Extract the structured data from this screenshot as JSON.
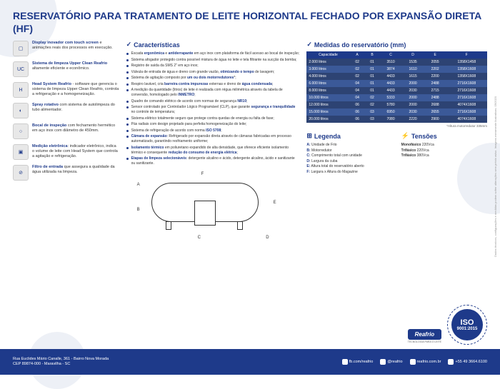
{
  "title": "RESERVATÓRIO PARA TRATAMENTO DE LEITE HORIZONTAL FECHADO POR EXPANSÃO DIRETA (HF)",
  "leftItems": [
    {
      "icon": "▢",
      "bold": "Display inovador com touch screen",
      "rest": " e animações reais dos processos em execução."
    },
    {
      "icon": "UC",
      "bold": "Sistema de limpeza Upper Clean Reafrio",
      "rest": " altamente eficiente e econômico."
    },
    {
      "icon": "H",
      "bold": "Head System Reafrio",
      "rest": " - software que gerencia o sistema de limpeza Upper Clean Reafrio, controla a refrigeração e a homogeneização."
    },
    {
      "icon": "◐",
      "bold": "Spray rotativo",
      "rest": " com sistema de autolimpeza do tubo alimentador."
    },
    {
      "icon": "○",
      "bold": "Bocal de inspeção",
      "rest": " com fechamento hermético em aço inox com diâmetro de 450mm."
    },
    {
      "icon": "▣",
      "bold": "Medição eletrônica",
      "rest": ": indicador eletrônico, indica o volume de leite com Head System que controla a agitação e refrigeração."
    },
    {
      "icon": "⊘",
      "bold": "Filtro de entrada",
      "rest": " que assegura a qualidade da água utilizada na limpeza."
    }
  ],
  "charTitle": "Características",
  "bullets": [
    "Escada <b>ergonômica</b> e <b>antiderrapante</b> em aço inox com plataforma de fácil acesso ao bocal de inspeção;",
    "Sistema afogador protegido contra possível mistura de água no leite e tela filtrante na sucção da bomba;",
    "Registro de saída da SMS 2\" em aço inox;",
    "Válvula de entrada de água e dreno com grande vazão, <b>otimizando o tempo</b> de lavagem;",
    "Sistema de agitação composto por <b>um ou dois motorredutores</b>*;",
    "Respiro lavável, cria <b>barreira contra impurezas</b> externas e dreno de <b>água condensada</b>;",
    "A medição da quantidade (litros) de leite é realizada com régua milimétrica através da tabela de conversão, homologado pelo <b>INMETRO</b>;",
    "Quadro de comando elétrico de acordo com normas de segurança <b>NR10</b>;",
    "Sensor controlado por Controlador Lógico Programável (CLP), que garante <b>segurança e tranquilidade</b> no controle de temperatura;",
    "Sistema elétrico totalmente seguro que protege contra quedas de energia ou falta de fase;",
    "Pás radiais com design projetado para perfeita homogeneização do leite;",
    "Sistema de refrigeração de acordo com norma <b>ISO 5708</b>;",
    "<b>Câmara de expansão</b>: Refrigerado por expansão direta através de câmaras fabricadas em processo automatizado, garantindo resfriamento uniforme;",
    "<b>Isolamento térmico</b> em poliuretano expandido de alta densidade, que oferece eficiente isolamento térmico e consequente <b>redução do consumo de energia elétrica</b>;",
    "<b>Etapas de limpeza selecionáveis</b>: detergente alcalino e ácido, detergente alcalino, ácido e sanitizante ou sanitizante."
  ],
  "tableTitle": "Medidas do reservatório (mm)",
  "tableHeaders": [
    "Capacidade",
    "A",
    "B",
    "C",
    "D",
    "E",
    "F"
  ],
  "tableRows": [
    [
      "2.000 litros",
      "02",
      "01",
      "3510",
      "1535",
      "2055",
      "1358X1458"
    ],
    [
      "3.000 litros",
      "02",
      "01",
      "3874",
      "1610",
      "2202",
      "1358X1608"
    ],
    [
      "4.000 litros",
      "02",
      "01",
      "4433",
      "1615",
      "2200",
      "1358X1608"
    ],
    [
      "6.000 litros",
      "04",
      "01",
      "4433",
      "2000",
      "2488",
      "2716X1608"
    ],
    [
      "8.000 litros",
      "04",
      "01",
      "4433",
      "2030",
      "2715",
      "2716X1608"
    ],
    [
      "10.000 litros",
      "04",
      "02",
      "5333",
      "2000",
      "2488",
      "2716X1608"
    ],
    [
      "12.000 litros",
      "06",
      "02",
      "5780",
      "2000",
      "2688",
      "4074X1608"
    ],
    [
      "15.000 litros",
      "06",
      "03",
      "6950",
      "2030",
      "2655",
      "2716X1608"
    ],
    [
      "20.000 litros",
      "06",
      "03",
      "7080",
      "2220",
      "2900",
      "4074X1608"
    ]
  ],
  "tableNote": "*Altura motorredutor 335mm",
  "legTitle": "Legenda",
  "legend": [
    {
      "k": "A:",
      "v": "Unidade de Frio"
    },
    {
      "k": "B:",
      "v": "Motorredutor"
    },
    {
      "k": "C:",
      "v": "Comprimento total com unidade"
    },
    {
      "k": "D:",
      "v": "Largura da cuba"
    },
    {
      "k": "E:",
      "v": "Altura total do reservatório aberto"
    },
    {
      "k": "F:",
      "v": "Largura x Altura do Magazine"
    }
  ],
  "tenTitle": "Tensões",
  "tensions": [
    "Monofásico 220Vca",
    "Trifásico 220Vca",
    "Trifásico 380Vca"
  ],
  "iso": {
    "big": "ISO",
    "small": "9001:2015"
  },
  "logo": {
    "name": "Reafrio",
    "sub": "TECNOLOGIA PARA O LEITE"
  },
  "footer": {
    "addr1": "Rua Euclides Mário Canalle, 361 - Bairro Nova Morada",
    "addr2": "CEP 89874-000 - Maravilha - SC",
    "social": [
      {
        "icon": "f",
        "text": "fb.com/reafrio"
      },
      {
        "icon": "◉",
        "text": "@reafrio"
      },
      {
        "icon": "🌐",
        "text": "reafrio.com.br"
      },
      {
        "icon": "✆",
        "text": "+55 49 3664.6100"
      }
    ]
  },
  "sideText": "Dados técnicos, configurações e medidas podem sofrer alterações sem prévio aviso. Imagens meramente ilustrativas. 09/2020",
  "colors": {
    "primary": "#1e3a8a",
    "rowOdd": "#3b5998",
    "rowEven": "#2d4373"
  }
}
